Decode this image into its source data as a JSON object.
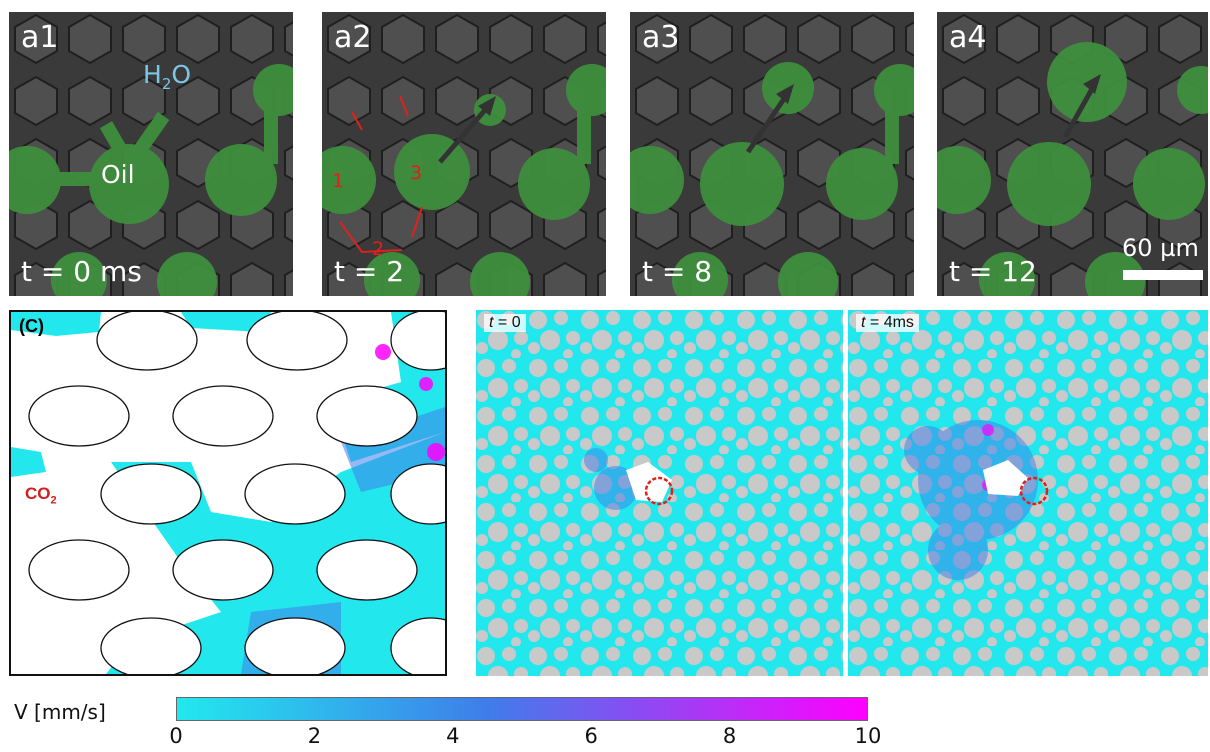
{
  "top_panels": [
    {
      "label": "a1",
      "time": "t = 0 ms",
      "h2o_label": "H",
      "h2o_sub": "2",
      "h2o_tail": "O",
      "oil_label": "Oil"
    },
    {
      "label": "a2",
      "time": "t = 2",
      "step_numbers": [
        "1",
        "2",
        "3"
      ]
    },
    {
      "label": "a3",
      "time": "t = 8"
    },
    {
      "label": "a4",
      "time": "t = 12",
      "scale_bar": "60 µm"
    }
  ],
  "panel_c": {
    "label": "(C)",
    "gas_label": "CO",
    "gas_sub": "2"
  },
  "sim_panels": [
    {
      "time_var": "t",
      "time_value": " = 0"
    },
    {
      "time_var": "t",
      "time_value": " = 4ms"
    }
  ],
  "colorbar": {
    "title": "V [mm/s]",
    "ticks": [
      "0",
      "2",
      "4",
      "6",
      "8",
      "10"
    ],
    "range": [
      0,
      10
    ],
    "colors": {
      "low": "#22e8ee",
      "mid": "#3f7dea",
      "high": "#ff00ff"
    }
  },
  "colors": {
    "oil": "#3f8f3e",
    "water": "#4b4b4b",
    "fluid": "#22e8ee",
    "grain": "#c9c9c9",
    "arrow_red": "#e0201b"
  }
}
